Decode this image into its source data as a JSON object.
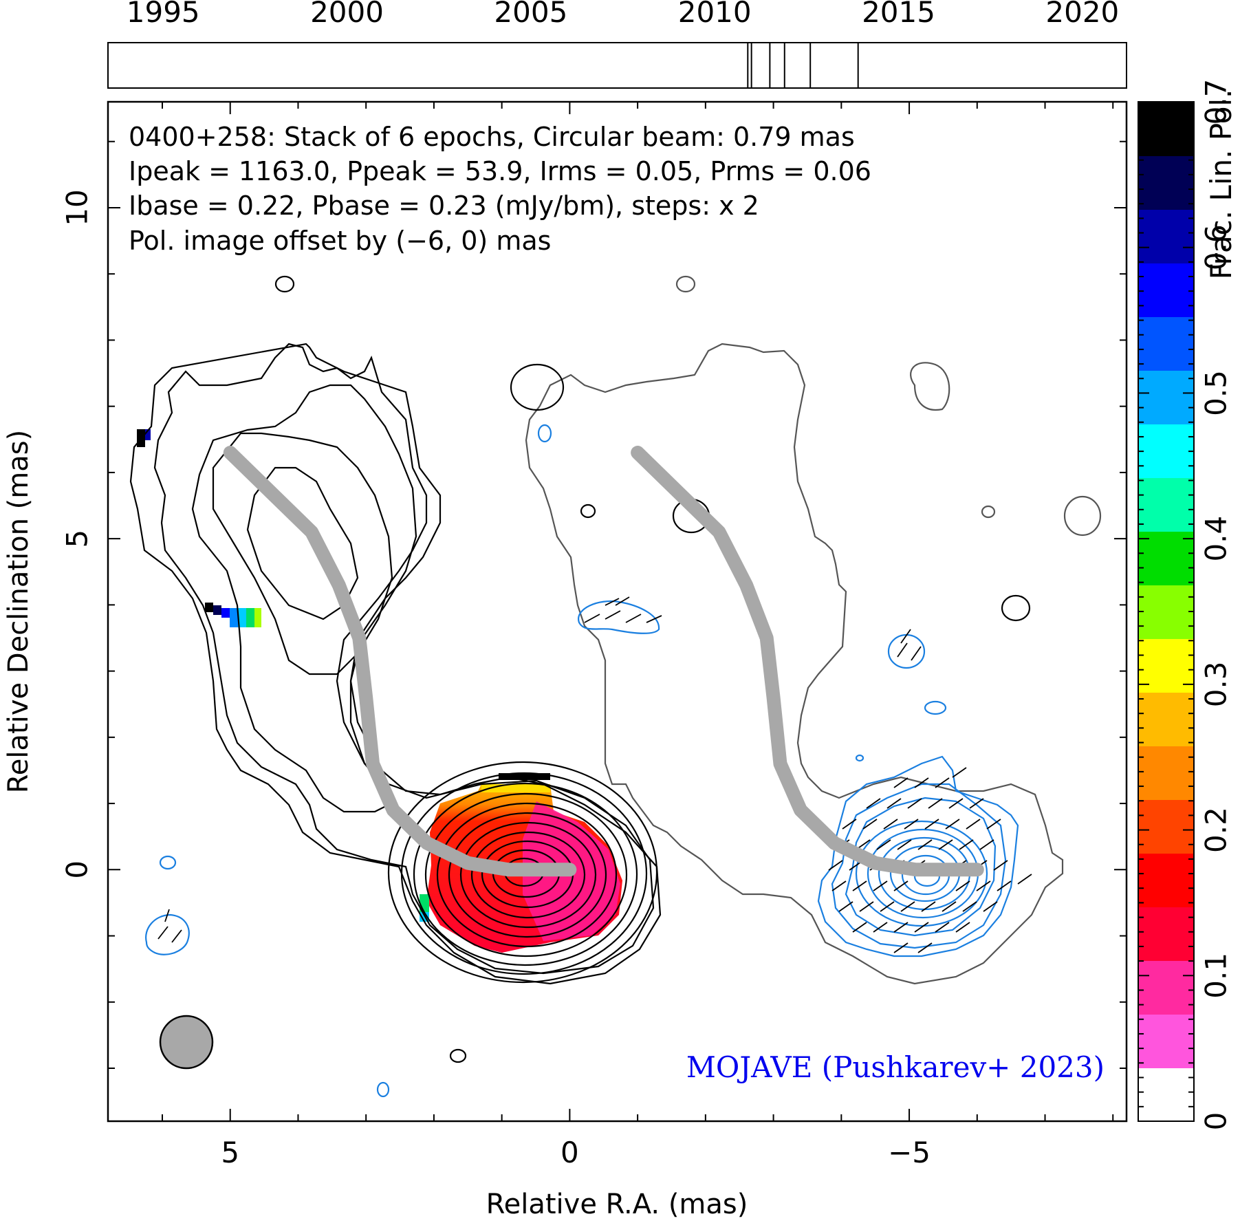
{
  "chart_data": {
    "type": "contour",
    "timeline": {
      "tick_labels": [
        "1995",
        "2000",
        "2005",
        "2010",
        "2015",
        "2020"
      ],
      "x_range": [
        1993.5,
        2021.2
      ],
      "epochs": [
        2010.9,
        2011.0,
        2011.5,
        2011.9,
        2012.6,
        2013.9
      ]
    },
    "source": "0400+258",
    "info": {
      "line1": "0400+258: Stack of 6 epochs, Circular beam: 0.79 mas",
      "line2": "Ipeak = 1163.0, Ppeak = 53.9, Irms = 0.05, Prms = 0.06",
      "line3": "Ibase = 0.22, Pbase = 0.23 (mJy/bm), steps: x 2",
      "line4": "Pol. image offset by (−6, 0) mas",
      "line4_color": "#1a7fe0"
    },
    "xlabel": "Relative R.A. (mas)",
    "ylabel": "Relative Declination (mas)",
    "x_tick_labels": [
      "5",
      "0",
      "−5"
    ],
    "y_tick_labels": [
      "0",
      "5",
      "10"
    ],
    "xlim": [
      6.8,
      -8.2
    ],
    "ylim": [
      -3.8,
      11.6
    ],
    "x_ticks": [
      5,
      0,
      -5
    ],
    "y_ticks": [
      0,
      5,
      10
    ],
    "colorbar": {
      "label": "Frac. Lin. Pol.",
      "range": [
        0,
        0.7
      ],
      "tick_labels": [
        "0",
        "0.1",
        "0.2",
        "0.3",
        "0.4",
        "0.5",
        "0.6",
        "0.7"
      ],
      "colors": [
        "#ffffff",
        "#ff55dd",
        "#ff2aa0",
        "#ff0033",
        "#ff0000",
        "#ff4400",
        "#ff8800",
        "#ffbb00",
        "#ffff00",
        "#88ff00",
        "#00dd00",
        "#00ffaa",
        "#00ffff",
        "#00aaff",
        "#0055ff",
        "#0000ff",
        "#0000aa",
        "#000055",
        "#000000"
      ]
    },
    "jet_ridge": [
      [
        5.0,
        6.3
      ],
      [
        4.4,
        5.7
      ],
      [
        3.8,
        5.1
      ],
      [
        3.4,
        4.3
      ],
      [
        3.1,
        3.5
      ],
      [
        3.0,
        2.6
      ],
      [
        2.9,
        1.6
      ],
      [
        2.6,
        0.9
      ],
      [
        2.1,
        0.4
      ],
      [
        1.5,
        0.1
      ],
      [
        0.9,
        0.0
      ],
      [
        0.0,
        0.0
      ]
    ],
    "beam_diameter_mas": 0.79,
    "credit": "MOJAVE (Pushkarev+ 2023)",
    "credit_color": "#0000ee",
    "colors": {
      "total_intensity_contour": "#000000",
      "pol_contour": "#1a7fe0",
      "ridge": "#a8a8a8",
      "beam": "#a8a8a8"
    }
  }
}
